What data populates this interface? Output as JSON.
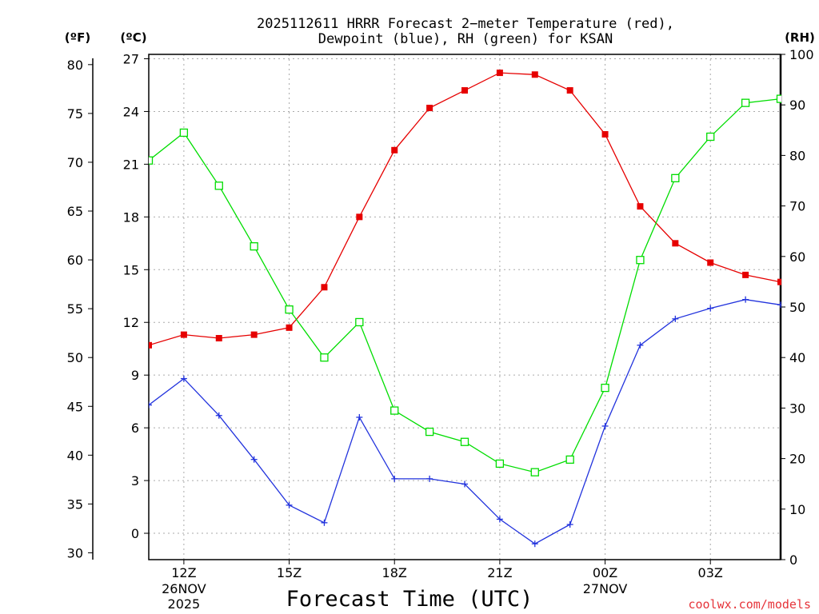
{
  "chart_data": {
    "type": "line",
    "title": "2025112611 HRRR Forecast 2−meter Temperature (red),",
    "subtitle": "Dewpoint (blue), RH (green) for KSAN",
    "xlabel": "Forecast Time (UTC)",
    "ylabel_left_f": "(ºF)",
    "ylabel_left_c": "(ºC)",
    "ylabel_right": "(RH)",
    "credit": "coolwx.com/models",
    "x": [
      11,
      12,
      13,
      14,
      15,
      16,
      17,
      18,
      19,
      20,
      21,
      22,
      23,
      24,
      25,
      26,
      27,
      28,
      29
    ],
    "xlim": [
      11,
      29
    ],
    "ylim_c": [
      -1.5,
      27.25
    ],
    "ylim_rh": [
      0,
      100
    ],
    "x_ticks": [
      {
        "x": 12,
        "label": "12Z",
        "line2": "26NOV",
        "line3": "2025"
      },
      {
        "x": 15,
        "label": "15Z",
        "line2": "",
        "line3": ""
      },
      {
        "x": 18,
        "label": "18Z",
        "line2": "",
        "line3": ""
      },
      {
        "x": 21,
        "label": "21Z",
        "line2": "",
        "line3": ""
      },
      {
        "x": 24,
        "label": "00Z",
        "line2": "27NOV",
        "line3": ""
      },
      {
        "x": 27,
        "label": "03Z",
        "line2": "",
        "line3": ""
      }
    ],
    "y_ticks_c": [
      "0",
      "3",
      "6",
      "9",
      "12",
      "15",
      "18",
      "21",
      "24",
      "27"
    ],
    "y_ticks_f": [
      "30",
      "35",
      "40",
      "45",
      "50",
      "55",
      "60",
      "65",
      "70",
      "75",
      "80"
    ],
    "y_ticks_rh": [
      "0",
      "10",
      "20",
      "30",
      "40",
      "50",
      "60",
      "70",
      "80",
      "90",
      "100"
    ],
    "grid": true,
    "series": [
      {
        "name": "Temperature",
        "unit": "C",
        "color": "#e60000",
        "marker": "filled-square",
        "values": [
          10.7,
          11.3,
          11.1,
          11.3,
          11.7,
          14.0,
          18.0,
          21.8,
          24.2,
          25.2,
          26.2,
          26.1,
          25.2,
          22.7,
          18.6,
          16.5,
          15.4,
          14.7,
          14.3
        ]
      },
      {
        "name": "Dewpoint",
        "unit": "C",
        "color": "#2233dd",
        "marker": "plus",
        "values": [
          7.3,
          8.8,
          6.7,
          4.2,
          1.6,
          0.6,
          6.6,
          3.1,
          3.1,
          2.8,
          0.8,
          -0.6,
          0.5,
          6.1,
          10.7,
          12.2,
          12.8,
          13.3,
          13.0
        ]
      },
      {
        "name": "RH",
        "unit": "%",
        "color": "#00dd00",
        "marker": "open-square",
        "values": [
          79,
          84.5,
          74,
          62,
          49.5,
          40,
          47,
          29.5,
          25.3,
          23.3,
          19,
          17.3,
          19.8,
          34,
          59.3,
          75.5,
          83.7,
          90.4,
          91.2
        ]
      }
    ]
  }
}
